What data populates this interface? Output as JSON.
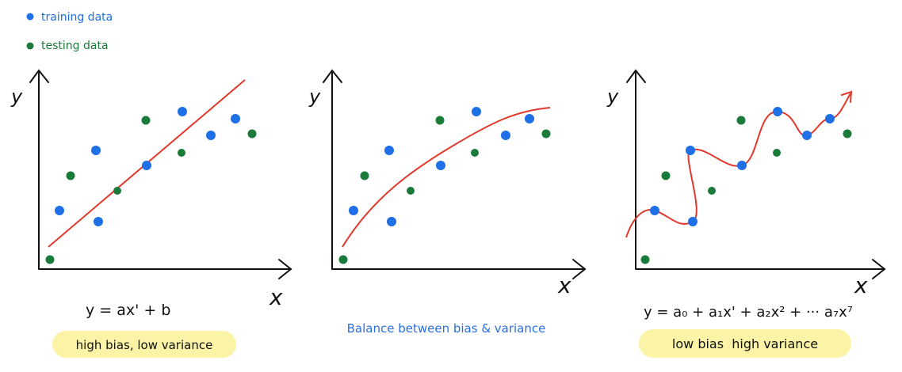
{
  "colors": {
    "training": "#1f6fe6",
    "testing": "#1a7a3a",
    "fit": "#e0392b",
    "axis": "#111111",
    "highlight": "#fbf3a6",
    "caption_blue": "#2a6fe0"
  },
  "legend": [
    {
      "label": "training data",
      "color_key": "training"
    },
    {
      "label": "testing data",
      "color_key": "testing"
    }
  ],
  "axis_labels": {
    "x": "x",
    "y": "y"
  },
  "panels": [
    {
      "id": "underfit",
      "model": "linear",
      "equation": "y = ax' + b",
      "caption": "high bias, low variance",
      "caption_highlight": true
    },
    {
      "id": "balanced",
      "model": "curve",
      "equation": "",
      "caption": "Balance between bias & variance",
      "caption_highlight": false
    },
    {
      "id": "overfit",
      "model": "polynomial",
      "equation": "y = a₀ + a₁x' + a₂x² + ··· a₇x⁷",
      "caption": "low bias  high variance",
      "caption_highlight": true
    }
  ]
}
